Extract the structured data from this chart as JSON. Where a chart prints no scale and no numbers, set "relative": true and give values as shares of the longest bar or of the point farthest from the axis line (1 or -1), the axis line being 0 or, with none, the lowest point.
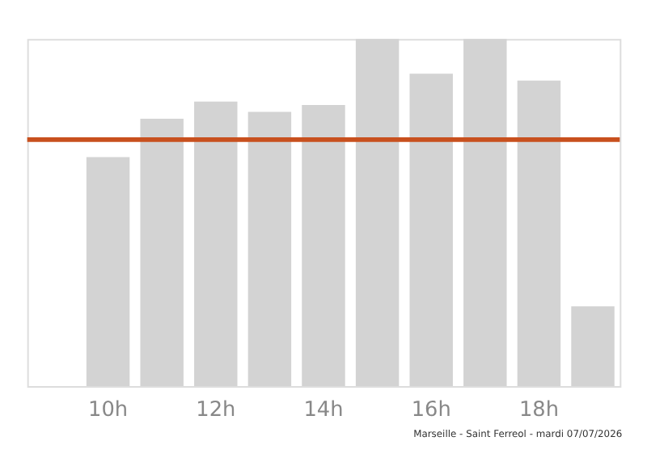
{
  "chart_data": {
    "type": "bar",
    "relative": true,
    "categories": [
      null,
      "10h",
      null,
      "12h",
      null,
      "14h",
      null,
      "16h",
      null,
      "18h",
      null
    ],
    "values": [
      0,
      0.66,
      0.77,
      0.82,
      0.79,
      0.81,
      1,
      0.9,
      1,
      0.88,
      0.23
    ],
    "color": "#d3d3d3",
    "ref_lines": [
      {
        "axis": "y",
        "value": 0.71,
        "color": "#c8501e"
      }
    ],
    "annotations": [
      "Marseille - Saint Ferreol - mardi 07/07/2026"
    ],
    "grid": false
  }
}
